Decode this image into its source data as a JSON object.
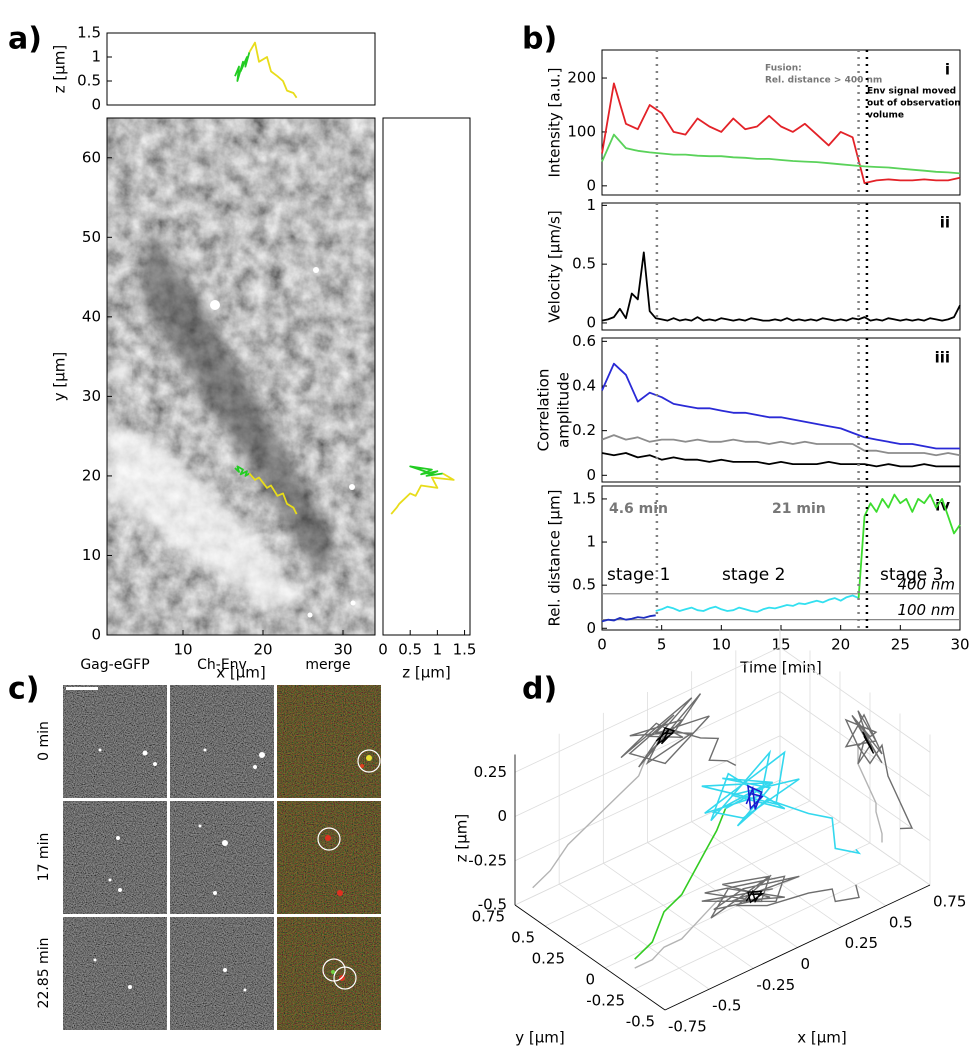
{
  "panel_labels": [
    "a)",
    "b)",
    "c)",
    "d)"
  ],
  "panel_c": {
    "columns": [
      "Gag-eGFP",
      "Ch-Env",
      "merge"
    ],
    "rows": [
      "0 min",
      "17 min",
      "22.85 min"
    ]
  },
  "chart_data": [
    {
      "type": "line",
      "ylabel": "z [µm]",
      "xlim": [
        0.5,
        34
      ],
      "ylim": [
        0,
        1.5
      ],
      "yticks": [
        0,
        0.5,
        1,
        1.5
      ],
      "series": [
        {
          "color": "#22cc22",
          "x": [
            16.5,
            17,
            16.8,
            17.5,
            17.2,
            18,
            17.8,
            18.3
          ],
          "values": [
            0.6,
            0.8,
            0.5,
            0.9,
            0.7,
            1.0,
            0.8,
            1.1
          ]
        },
        {
          "color": "#e8dc1a",
          "x": [
            18.3,
            19,
            19.5,
            20.5,
            21,
            21.8,
            22.5,
            23,
            23.8,
            24.2
          ],
          "values": [
            1.1,
            1.3,
            0.9,
            1.0,
            0.7,
            0.6,
            0.5,
            0.3,
            0.25,
            0.15
          ]
        }
      ]
    },
    {
      "type": "line",
      "xlabel": "x [µm]",
      "ylabel": "y [µm]",
      "xlim": [
        0.5,
        34
      ],
      "ylim": [
        0,
        65
      ],
      "xticks": [
        10,
        20,
        30
      ],
      "yticks": [
        0,
        10,
        20,
        30,
        40,
        50,
        60
      ],
      "series": [
        {
          "color": "#22cc22",
          "x": [
            16.5,
            17,
            16.8,
            17.5,
            17.2,
            18,
            17.8,
            18.3
          ],
          "values": [
            21,
            20.5,
            21.2,
            20.8,
            20.2,
            20.6,
            20,
            20.3
          ]
        },
        {
          "color": "#e8dc1a",
          "x": [
            18.3,
            19,
            19.5,
            20.5,
            21,
            21.8,
            22.5,
            23,
            23.8,
            24.2
          ],
          "values": [
            20.3,
            19.5,
            19.8,
            18.5,
            18.8,
            17.5,
            17.8,
            16.5,
            16,
            15.2
          ]
        }
      ]
    },
    {
      "type": "line",
      "xlabel": "z [µm]",
      "xlim": [
        0,
        1.6
      ],
      "ylim": [
        0,
        65
      ],
      "xticks": [
        0,
        0.5,
        1,
        1.5
      ],
      "series": [
        {
          "color": "#22cc22",
          "x": [
            0.6,
            0.8,
            0.5,
            0.9,
            0.7,
            1.0,
            0.8,
            1.1
          ],
          "values": [
            21,
            20.5,
            21.2,
            20.8,
            20.2,
            20.6,
            20,
            20.3
          ]
        },
        {
          "color": "#e8dc1a",
          "x": [
            1.1,
            1.3,
            0.9,
            1.0,
            0.7,
            0.6,
            0.5,
            0.3,
            0.25,
            0.15
          ],
          "values": [
            20.3,
            19.5,
            19.8,
            18.5,
            18.8,
            17.5,
            17.8,
            16.5,
            16,
            15.2
          ]
        }
      ]
    },
    {
      "type": "line",
      "label": "i",
      "ylabel": "Intensity [a.u.]",
      "xlim": [
        0,
        30
      ],
      "ylim": [
        -17,
        252
      ],
      "yticks": [
        0,
        100,
        200
      ],
      "annotations": [
        "Fusion:",
        "Rel. distance > 400 nm",
        "Env signal moved",
        "out of observation",
        "volume"
      ],
      "vlines": [
        {
          "x": 4.6,
          "color": "#808080"
        },
        {
          "x": 21.5,
          "color": "#808080"
        },
        {
          "x": 22.2,
          "color": "#000000"
        }
      ],
      "x": [
        0,
        1,
        2,
        3,
        4,
        5,
        6,
        7,
        8,
        9,
        10,
        11,
        12,
        13,
        14,
        15,
        16,
        17,
        18,
        19,
        20,
        21,
        22,
        23,
        24,
        25,
        26,
        27,
        28,
        29,
        30
      ],
      "series": [
        {
          "color": "#e32228",
          "values": [
            60,
            190,
            115,
            105,
            150,
            135,
            100,
            95,
            125,
            110,
            100,
            125,
            105,
            110,
            130,
            110,
            100,
            115,
            95,
            75,
            100,
            90,
            5,
            10,
            12,
            10,
            10,
            12,
            10,
            10,
            15
          ]
        },
        {
          "color": "#5ad25a",
          "values": [
            45,
            95,
            70,
            65,
            62,
            60,
            58,
            58,
            56,
            55,
            55,
            53,
            52,
            50,
            50,
            48,
            46,
            45,
            44,
            42,
            40,
            38,
            36,
            35,
            34,
            32,
            30,
            28,
            26,
            25,
            23
          ]
        }
      ]
    },
    {
      "type": "line",
      "label": "ii",
      "ylabel": "Velocity [µm/s]",
      "xlim": [
        0,
        30
      ],
      "ylim": [
        -0.06,
        1.02
      ],
      "yticks": [
        0,
        0.5,
        1
      ],
      "vlines": [
        {
          "x": 4.6,
          "color": "#808080"
        },
        {
          "x": 21.5,
          "color": "#808080"
        },
        {
          "x": 22.2,
          "color": "#000000"
        }
      ],
      "x": [
        0,
        0.5,
        1,
        1.5,
        2,
        2.5,
        3,
        3.5,
        4,
        4.5,
        5,
        5.5,
        6,
        6.5,
        7,
        7.5,
        8,
        8.5,
        9,
        9.5,
        10,
        10.5,
        11,
        11.5,
        12,
        12.5,
        13,
        13.5,
        14,
        14.5,
        15,
        15.5,
        16,
        16.5,
        17,
        17.5,
        18,
        18.5,
        19,
        19.5,
        20,
        20.5,
        21,
        21.5,
        22,
        22.5,
        23,
        23.5,
        24,
        24.5,
        25,
        25.5,
        26,
        26.5,
        27,
        27.5,
        28,
        28.5,
        29,
        29.5,
        30
      ],
      "series": [
        {
          "color": "#000000",
          "values": [
            0.02,
            0.03,
            0.05,
            0.12,
            0.04,
            0.25,
            0.2,
            0.6,
            0.1,
            0.04,
            0.03,
            0.02,
            0.04,
            0.02,
            0.03,
            0.02,
            0.05,
            0.02,
            0.03,
            0.02,
            0.04,
            0.03,
            0.02,
            0.03,
            0.02,
            0.04,
            0.03,
            0.02,
            0.02,
            0.03,
            0.02,
            0.04,
            0.02,
            0.03,
            0.02,
            0.03,
            0.02,
            0.04,
            0.03,
            0.02,
            0.03,
            0.02,
            0.04,
            0.03,
            0.05,
            0.02,
            0.03,
            0.02,
            0.04,
            0.03,
            0.02,
            0.03,
            0.02,
            0.03,
            0.02,
            0.04,
            0.03,
            0.02,
            0.03,
            0.05,
            0.15
          ]
        }
      ]
    },
    {
      "type": "line",
      "label": "iii",
      "ylabel": [
        "Correlation",
        "amplitude"
      ],
      "xlim": [
        0,
        30
      ],
      "ylim": [
        -0.03,
        0.615
      ],
      "yticks": [
        0,
        0.2,
        0.4,
        0.6
      ],
      "vlines": [
        {
          "x": 4.6,
          "color": "#808080"
        },
        {
          "x": 21.5,
          "color": "#808080"
        },
        {
          "x": 22.2,
          "color": "#000000"
        }
      ],
      "x": [
        0,
        1,
        2,
        3,
        4,
        5,
        6,
        7,
        8,
        9,
        10,
        11,
        12,
        13,
        14,
        15,
        16,
        17,
        18,
        19,
        20,
        21,
        22,
        23,
        24,
        25,
        26,
        27,
        28,
        29,
        30
      ],
      "series": [
        {
          "color": "#2a2ad6",
          "values": [
            0.38,
            0.5,
            0.45,
            0.33,
            0.37,
            0.35,
            0.32,
            0.31,
            0.3,
            0.3,
            0.29,
            0.28,
            0.28,
            0.27,
            0.26,
            0.26,
            0.25,
            0.24,
            0.23,
            0.22,
            0.21,
            0.19,
            0.17,
            0.16,
            0.15,
            0.14,
            0.14,
            0.13,
            0.12,
            0.12,
            0.12
          ]
        },
        {
          "color": "#8c8c8c",
          "values": [
            0.16,
            0.18,
            0.16,
            0.17,
            0.15,
            0.16,
            0.16,
            0.15,
            0.16,
            0.15,
            0.15,
            0.16,
            0.15,
            0.15,
            0.14,
            0.15,
            0.14,
            0.15,
            0.14,
            0.14,
            0.14,
            0.14,
            0.11,
            0.11,
            0.1,
            0.1,
            0.1,
            0.1,
            0.09,
            0.1,
            0.09
          ]
        },
        {
          "color": "#000000",
          "values": [
            0.1,
            0.09,
            0.1,
            0.08,
            0.09,
            0.07,
            0.08,
            0.07,
            0.07,
            0.06,
            0.07,
            0.06,
            0.06,
            0.06,
            0.05,
            0.06,
            0.05,
            0.05,
            0.05,
            0.06,
            0.05,
            0.05,
            0.05,
            0.04,
            0.05,
            0.04,
            0.04,
            0.05,
            0.04,
            0.04,
            0.04
          ]
        }
      ]
    },
    {
      "type": "line",
      "label": "iv",
      "xlabel": "Time [min]",
      "ylabel": "Rel. distance [µm]",
      "xlim": [
        0,
        30
      ],
      "ylim": [
        -0.02,
        1.65
      ],
      "xticks": [
        0,
        5,
        10,
        15,
        20,
        25,
        30
      ],
      "yticks": [
        0,
        0.5,
        1,
        1.5
      ],
      "annotations": [
        "4.6 min",
        "21 min",
        "stage 1",
        "stage 2",
        "stage 3"
      ],
      "vlines": [
        {
          "x": 4.6,
          "color": "#808080"
        },
        {
          "x": 21.5,
          "color": "#808080"
        },
        {
          "x": 22.2,
          "color": "#000000"
        }
      ],
      "hlines": [
        {
          "y": 0.4,
          "label": "400 nm"
        },
        {
          "y": 0.1,
          "label": "100 nm"
        }
      ],
      "x": [
        0,
        0.5,
        1,
        1.5,
        2,
        2.5,
        3,
        3.5,
        4,
        4.5,
        5,
        5.5,
        6,
        6.5,
        7,
        7.5,
        8,
        8.5,
        9,
        9.5,
        10,
        10.5,
        11,
        11.5,
        12,
        12.5,
        13,
        13.5,
        14,
        14.5,
        15,
        15.5,
        16,
        16.5,
        17,
        17.5,
        18,
        18.5,
        19,
        19.5,
        20,
        20.5,
        21,
        21.5,
        22,
        22.5,
        23,
        23.5,
        24,
        24.5,
        25,
        25.5,
        26,
        26.5,
        27,
        27.5,
        28,
        28.5,
        29,
        29.5,
        30
      ],
      "series": [
        {
          "color": "#1f2fbf",
          "values": [
            0.08,
            0.1,
            0.09,
            0.12,
            0.1,
            0.11,
            0.13,
            0.12,
            0.14,
            0.15,
            null,
            null,
            null,
            null,
            null,
            null,
            null,
            null,
            null,
            null,
            null,
            null,
            null,
            null,
            null,
            null,
            null,
            null,
            null,
            null,
            null,
            null,
            null,
            null,
            null,
            null,
            null,
            null,
            null,
            null,
            null,
            null,
            null,
            null,
            null,
            null,
            null,
            null,
            null,
            null,
            null,
            null,
            null,
            null,
            null,
            null,
            null,
            null,
            null,
            null,
            null
          ]
        },
        {
          "color": "#33e0f0",
          "values": [
            null,
            null,
            null,
            null,
            null,
            null,
            null,
            null,
            null,
            0.2,
            0.22,
            0.25,
            0.23,
            0.2,
            0.22,
            0.24,
            0.21,
            0.2,
            0.23,
            0.25,
            0.22,
            0.2,
            0.21,
            0.24,
            0.22,
            0.2,
            0.19,
            0.22,
            0.24,
            0.23,
            0.25,
            0.27,
            0.26,
            0.29,
            0.28,
            0.3,
            0.32,
            0.3,
            0.33,
            0.35,
            0.32,
            0.36,
            0.38,
            0.35,
            null,
            null,
            null,
            null,
            null,
            null,
            null,
            null,
            null,
            null,
            null,
            null,
            null,
            null,
            null,
            null,
            null
          ]
        },
        {
          "color": "#3ddc2f",
          "values": [
            null,
            null,
            null,
            null,
            null,
            null,
            null,
            null,
            null,
            null,
            null,
            null,
            null,
            null,
            null,
            null,
            null,
            null,
            null,
            null,
            null,
            null,
            null,
            null,
            null,
            null,
            null,
            null,
            null,
            null,
            null,
            null,
            null,
            null,
            null,
            null,
            null,
            null,
            null,
            null,
            null,
            null,
            null,
            0.35,
            1.3,
            1.45,
            1.35,
            1.5,
            1.4,
            1.55,
            1.45,
            1.5,
            1.35,
            1.5,
            1.45,
            1.55,
            1.4,
            1.5,
            1.3,
            1.1,
            1.2
          ]
        }
      ]
    },
    {
      "type": "line3d",
      "xlabel": "x [µm]",
      "ylabel": "y [µm]",
      "zlabel": "z [µm]",
      "xlim": [
        -0.75,
        0.75
      ],
      "ylim": [
        -0.5,
        0.75
      ],
      "zlim": [
        -0.5,
        0.35
      ],
      "xticks": [
        -0.75,
        -0.5,
        -0.25,
        0,
        0.25,
        0.5,
        0.75
      ],
      "yticks": [
        -0.5,
        -0.25,
        0,
        0.25,
        0.5,
        0.75
      ],
      "zticks": [
        -0.5,
        -0.25,
        0,
        0.25
      ],
      "series": [
        {
          "color": "#33cc22",
          "projection_color": "#b4b4b4",
          "x": [
            -0.65,
            -0.55,
            -0.45,
            -0.35,
            -0.25,
            -0.15,
            -0.05,
            0
          ],
          "y": [
            -0.1,
            -0.1,
            -0.05,
            -0.05,
            0,
            0.05,
            0.1,
            0.1
          ],
          "z": [
            -0.45,
            -0.4,
            -0.3,
            -0.25,
            -0.2,
            -0.15,
            -0.1,
            0
          ]
        },
        {
          "color": "#33d8ee",
          "projection_color": "#6e6e6e",
          "x": [
            0,
            0.2,
            -0.1,
            0.15,
            0.3,
            -0.05,
            0.1,
            0.25,
            -0.15,
            0.05,
            0.2,
            0,
            0.35,
            0.1,
            -0.1,
            0.15,
            0.05,
            0.25,
            0,
            0.1,
            0.3,
            0.4,
            0.35,
            0.45,
            0.5
          ],
          "y": [
            0.1,
            0,
            0.15,
            -0.1,
            0.05,
            0.2,
            -0.05,
            0.1,
            0,
            0.15,
            -0.1,
            0.05,
            0,
            0.1,
            0.05,
            -0.05,
            0.2,
            0.1,
            0,
            -0.1,
            -0.15,
            -0.2,
            -0.3,
            -0.35,
            -0.25
          ],
          "z": [
            0,
            0.1,
            0.15,
            0.05,
            0.2,
            -0.05,
            0.1,
            0.2,
            0.05,
            0.15,
            0,
            0.1,
            0.05,
            -0.1,
            0.05,
            0.15,
            0.1,
            0,
            -0.05,
            0.1,
            -0.05,
            -0.1,
            -0.2,
            -0.25,
            -0.3
          ]
        },
        {
          "color": "#1a1ad0",
          "projection_color": "#000000",
          "x": [
            0.05,
            0.12,
            0.08,
            0.15,
            0.1,
            0.06,
            0.14,
            0.1
          ],
          "y": [
            0,
            0.05,
            -0.03,
            0.02,
            0.06,
            -0.02,
            0,
            0.03
          ],
          "z": [
            0.05,
            0.08,
            0.02,
            0.06,
            0.1,
            0.03,
            0.05,
            0.07
          ]
        }
      ]
    }
  ]
}
